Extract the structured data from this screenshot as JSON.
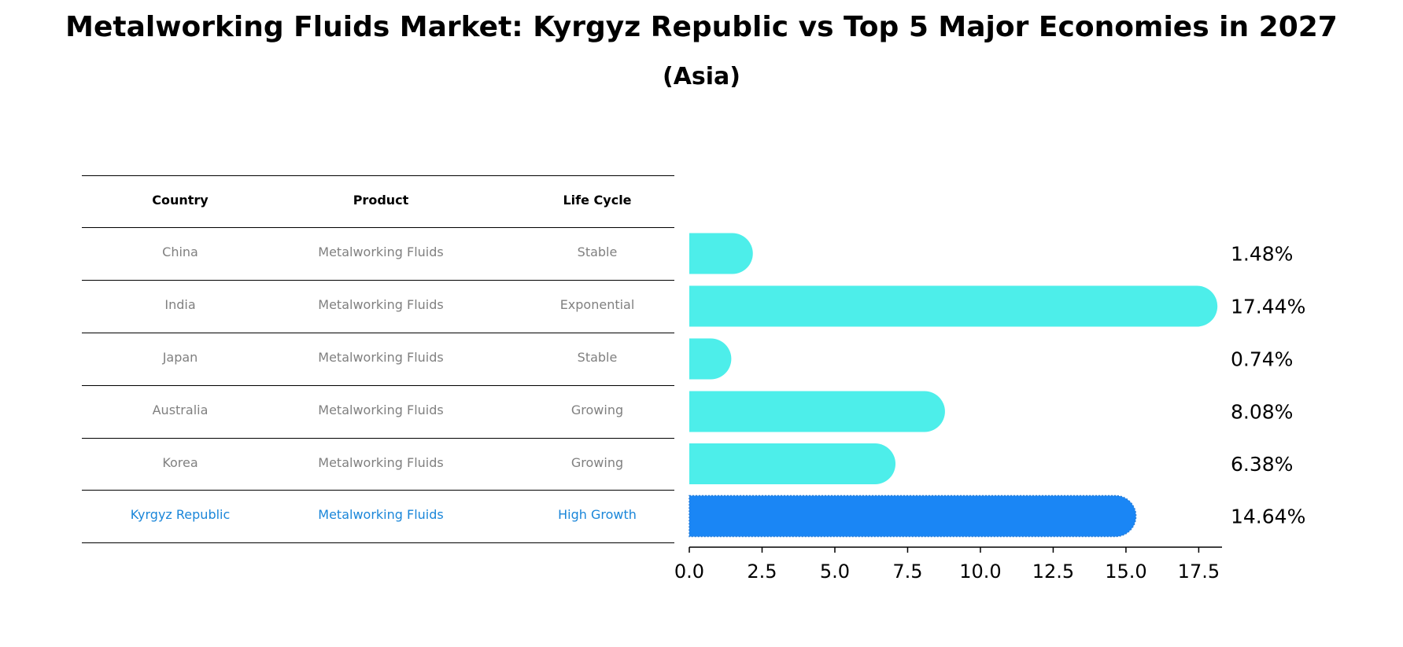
{
  "title": "Metalworking Fluids Market: Kyrgyz Republic vs Top 5 Major Economies in 2027",
  "subtitle": "(Asia)",
  "table": {
    "headers": [
      "Country",
      "Product",
      "Life Cycle"
    ],
    "rows": [
      {
        "country": "China",
        "product": "Metalworking Fluids",
        "life_cycle": "Stable"
      },
      {
        "country": "India",
        "product": "Metalworking Fluids",
        "life_cycle": "Exponential"
      },
      {
        "country": "Japan",
        "product": "Metalworking Fluids",
        "life_cycle": "Stable"
      },
      {
        "country": "Australia",
        "product": "Metalworking Fluids",
        "life_cycle": "Growing"
      },
      {
        "country": "Korea",
        "product": "Metalworking Fluids",
        "life_cycle": "Growing"
      },
      {
        "country": "Kyrgyz Republic",
        "product": "Metalworking Fluids",
        "life_cycle": "High Growth"
      }
    ],
    "highlight_row": 5
  },
  "colors": {
    "bar": "#4deeea",
    "highlight_bar": "#1a86f5",
    "highlight_text": "#1a86d9",
    "muted_text": "#808080"
  },
  "chart_data": {
    "type": "bar",
    "orientation": "horizontal",
    "categories": [
      "China",
      "India",
      "Japan",
      "Australia",
      "Korea",
      "Kyrgyz Republic"
    ],
    "values": [
      1.48,
      17.44,
      0.74,
      8.08,
      6.38,
      14.64
    ],
    "value_labels": [
      "1.48%",
      "17.44%",
      "0.74%",
      "8.08%",
      "6.38%",
      "14.64%"
    ],
    "highlight_index": 5,
    "xlim": [
      0,
      18.3
    ],
    "xticks": [
      0.0,
      2.5,
      5.0,
      7.5,
      10.0,
      12.5,
      15.0,
      17.5
    ],
    "xtick_labels": [
      "0.0",
      "2.5",
      "5.0",
      "7.5",
      "10.0",
      "12.5",
      "15.0",
      "17.5"
    ],
    "bar_style": "rounded end"
  }
}
